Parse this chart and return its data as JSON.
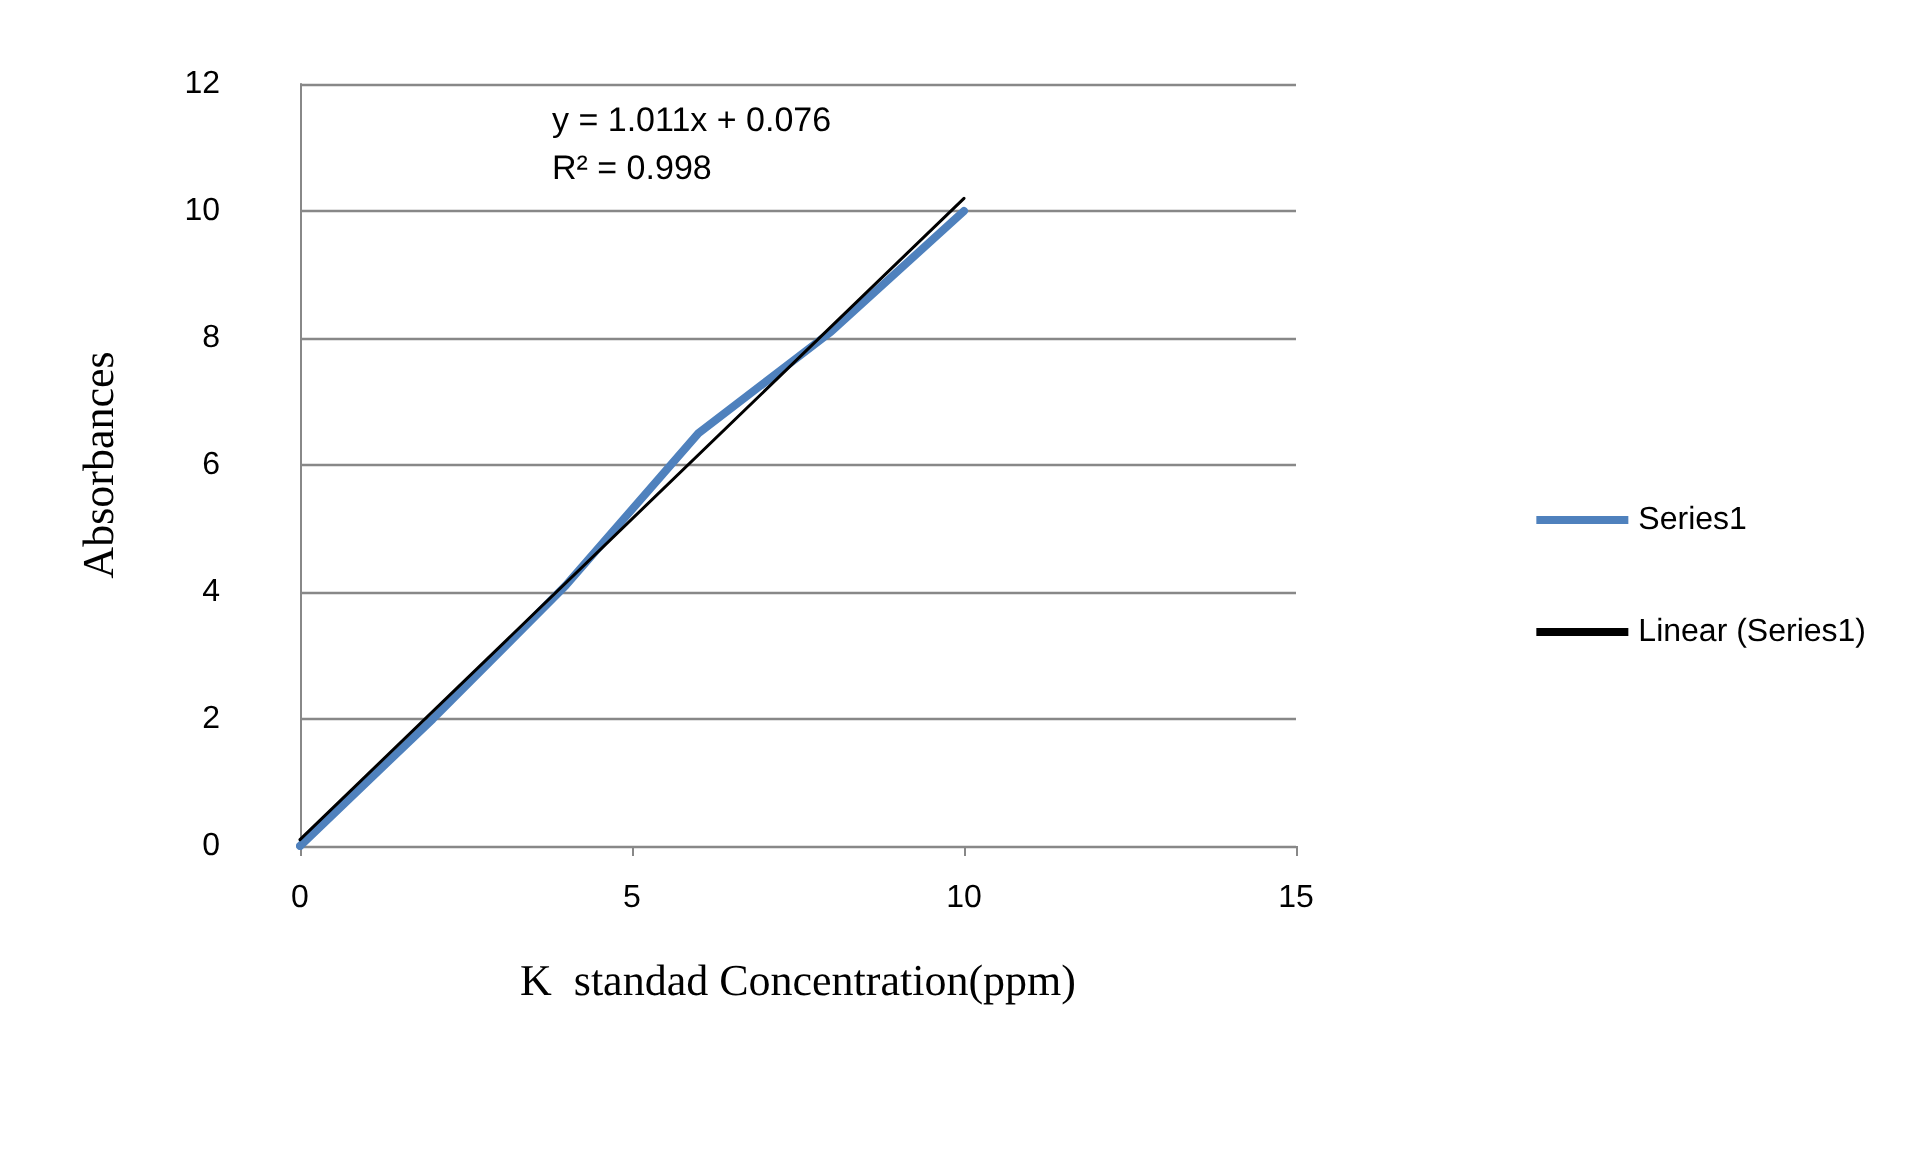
{
  "chart_data": {
    "type": "line",
    "xlabel": "K  standad Concentration(ppm)",
    "ylabel": "Absorbances",
    "x": [
      0,
      2,
      4,
      6,
      8,
      10
    ],
    "series": [
      {
        "name": "Series1",
        "color": "#4f81bd",
        "values": [
          0,
          2,
          4.1,
          6.5,
          8.1,
          10
        ]
      },
      {
        "name": "Linear (Series1)",
        "type": "line",
        "color": "#000000",
        "x": [
          0,
          10
        ],
        "values": [
          0.1,
          10.2
        ]
      }
    ],
    "annotations": [
      "y = 1.011x + 0.076\nR² = 0.998"
    ],
    "xlim": [
      0,
      15
    ],
    "xticks": [
      0,
      5,
      10,
      15
    ],
    "ylim": [
      0,
      12
    ],
    "yticks": [
      0,
      2,
      4,
      6,
      8,
      10,
      12
    ],
    "grid": "y",
    "legend": "right",
    "marker": "none",
    "line_style": "solid"
  }
}
